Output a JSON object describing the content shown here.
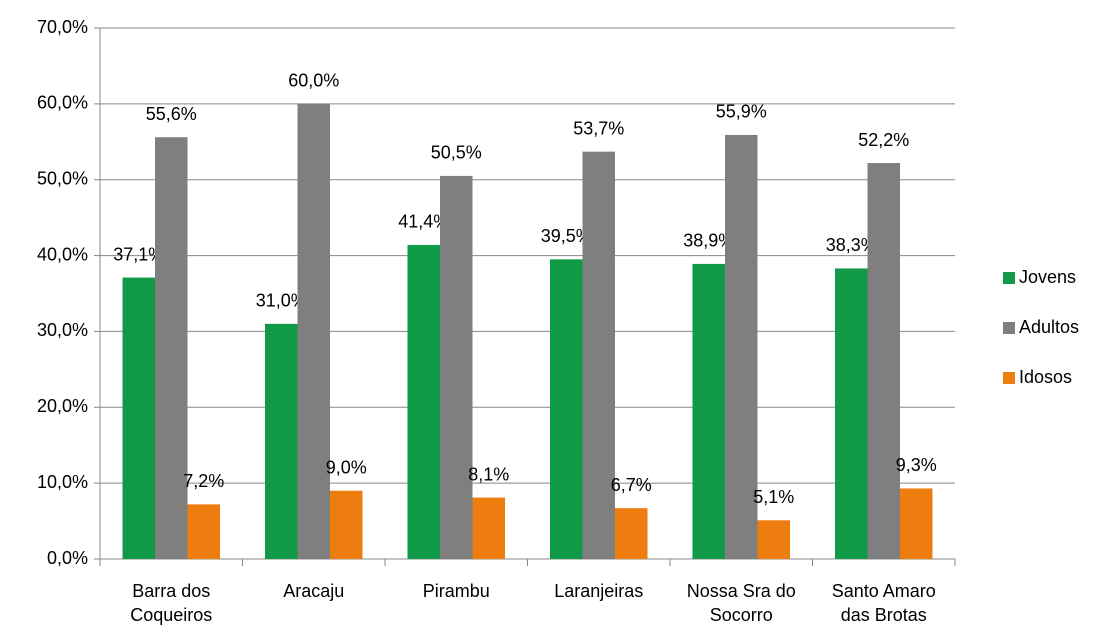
{
  "chart_data": {
    "type": "bar",
    "categories": [
      "Barra dos Coqueiros",
      "Aracaju",
      "Pirambu",
      "Laranjeiras",
      "Nossa Sra do Socorro",
      "Santo Amaro das Brotas"
    ],
    "series": [
      {
        "name": "Jovens",
        "color": "#109a48",
        "values": [
          37.1,
          31.0,
          41.4,
          39.5,
          38.9,
          38.3
        ],
        "value_labels": [
          "37,1%",
          "31,0%",
          "41,4%",
          "39,5%",
          "38,9%",
          "38,3%"
        ]
      },
      {
        "name": "Adultos",
        "color": "#7f7f7f",
        "values": [
          55.6,
          60.0,
          50.5,
          53.7,
          55.9,
          52.2
        ],
        "value_labels": [
          "55,6%",
          "60,0%",
          "50,5%",
          "53,7%",
          "55,9%",
          "52,2%"
        ]
      },
      {
        "name": "Idosos",
        "color": "#ed7d0f",
        "values": [
          7.2,
          9.0,
          8.1,
          6.7,
          5.1,
          9.3
        ],
        "value_labels": [
          "7,2%",
          "9,0%",
          "8,1%",
          "6,7%",
          "5,1%",
          "9,3%"
        ]
      }
    ],
    "ylim": [
      0,
      70
    ],
    "yticks": [
      {
        "value": 0,
        "label": "0,0%"
      },
      {
        "value": 10,
        "label": "10,0%"
      },
      {
        "value": 20,
        "label": "20,0%"
      },
      {
        "value": 30,
        "label": "30,0%"
      },
      {
        "value": 40,
        "label": "40,0%"
      },
      {
        "value": 50,
        "label": "50,0%"
      },
      {
        "value": 60,
        "label": "60,0%"
      },
      {
        "value": 70,
        "label": "70,0%"
      }
    ],
    "grid": true,
    "legend": "right"
  }
}
